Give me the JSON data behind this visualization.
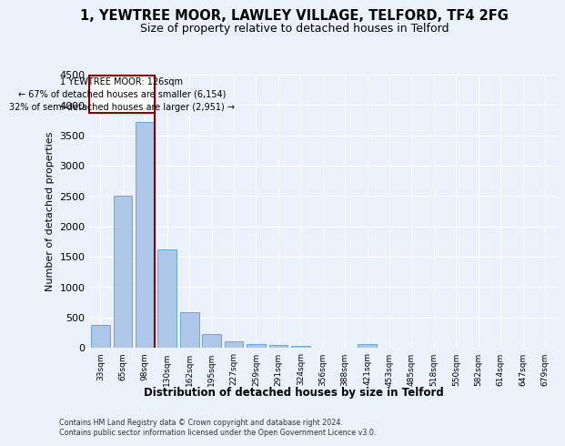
{
  "title_line1": "1, YEWTREE MOOR, LAWLEY VILLAGE, TELFORD, TF4 2FG",
  "title_line2": "Size of property relative to detached houses in Telford",
  "xlabel": "Distribution of detached houses by size in Telford",
  "ylabel": "Number of detached properties",
  "categories": [
    "33sqm",
    "65sqm",
    "98sqm",
    "130sqm",
    "162sqm",
    "195sqm",
    "227sqm",
    "259sqm",
    "291sqm",
    "324sqm",
    "356sqm",
    "388sqm",
    "421sqm",
    "453sqm",
    "485sqm",
    "518sqm",
    "550sqm",
    "582sqm",
    "614sqm",
    "647sqm",
    "679sqm"
  ],
  "values": [
    375,
    2500,
    3725,
    1625,
    590,
    225,
    105,
    60,
    40,
    35,
    0,
    0,
    55,
    0,
    0,
    0,
    0,
    0,
    0,
    0,
    0
  ],
  "bar_color": "#aec6e8",
  "bar_edge_color": "#5a9fd4",
  "vline_color": "#8b0000",
  "annotation_text": "1 YEWTREE MOOR: 126sqm\n← 67% of detached houses are smaller (6,154)\n32% of semi-detached houses are larger (2,951) →",
  "annotation_box_color": "#8b0000",
  "ylim": [
    0,
    4500
  ],
  "yticks": [
    0,
    500,
    1000,
    1500,
    2000,
    2500,
    3000,
    3500,
    4000,
    4500
  ],
  "footer_line1": "Contains HM Land Registry data © Crown copyright and database right 2024.",
  "footer_line2": "Contains public sector information licensed under the Open Government Licence v3.0.",
  "bg_color": "#eaf1fb",
  "plot_bg_color": "#eaf1fb",
  "grid_color": "#ffffff"
}
